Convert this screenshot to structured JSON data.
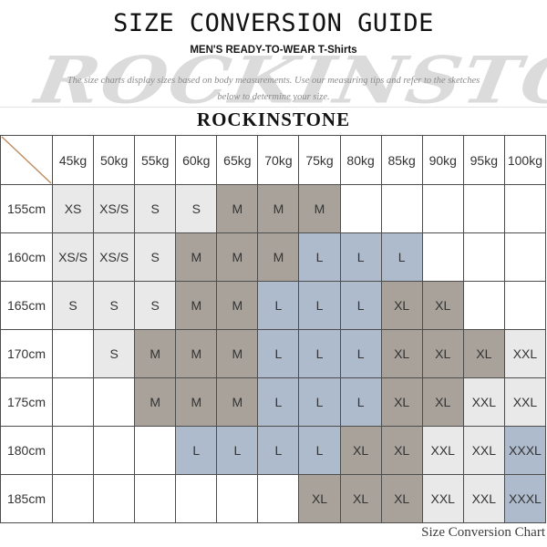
{
  "header": {
    "title": "SIZE CONVERSION GUIDE",
    "subtitle": "MEN'S READY-TO-WEAR T-Shirts",
    "description_line1": "The size charts display sizes based on body measurements. Use our measuring tips and refer to the sketches",
    "description_line2": "below to determine your size.",
    "brand": "ROCKINSTONE",
    "watermark": "ROCKINSTONE"
  },
  "table": {
    "weight_headers": [
      "45kg",
      "50kg",
      "55kg",
      "60kg",
      "65kg",
      "70kg",
      "75kg",
      "80kg",
      "85kg",
      "90kg",
      "95kg",
      "100kg"
    ],
    "rows": [
      {
        "height": "155cm",
        "sizes": [
          "XS",
          "XS/S",
          "S",
          "S",
          "M",
          "M",
          "M",
          "",
          "",
          "",
          "",
          ""
        ]
      },
      {
        "height": "160cm",
        "sizes": [
          "XS/S",
          "XS/S",
          "S",
          "M",
          "M",
          "M",
          "L",
          "L",
          "L",
          "",
          "",
          ""
        ]
      },
      {
        "height": "165cm",
        "sizes": [
          "S",
          "S",
          "S",
          "M",
          "M",
          "L",
          "L",
          "L",
          "XL",
          "XL",
          "",
          ""
        ]
      },
      {
        "height": "170cm",
        "sizes": [
          "",
          "S",
          "M",
          "M",
          "M",
          "L",
          "L",
          "L",
          "XL",
          "XL",
          "XL",
          "XXL"
        ]
      },
      {
        "height": "175cm",
        "sizes": [
          "",
          "",
          "M",
          "M",
          "M",
          "L",
          "L",
          "L",
          "XL",
          "XL",
          "XXL",
          "XXL"
        ]
      },
      {
        "height": "180cm",
        "sizes": [
          "",
          "",
          "",
          "L",
          "L",
          "L",
          "L",
          "XL",
          "XL",
          "XXL",
          "XXL",
          "XXXL"
        ]
      },
      {
        "height": "185cm",
        "sizes": [
          "",
          "",
          "",
          "",
          "",
          "",
          "XL",
          "XL",
          "XL",
          "XXL",
          "XXL",
          "XXXL"
        ]
      }
    ],
    "size_colors": {
      "XS": "light",
      "XS/S": "light",
      "S": "light",
      "M": "dark",
      "L": "blue",
      "XL": "dark",
      "XXL": "light",
      "XXXL": "blue"
    }
  },
  "colors": {
    "light": "#e9e9e9",
    "dark": "#a8a29b",
    "blue": "#aebbcd",
    "empty": "#ffffff",
    "border": "#4d4d4d",
    "diagonal": "#bd8a5e",
    "watermark": "#dbdbdb"
  },
  "footer": {
    "caption": "Size Conversion Chart"
  }
}
